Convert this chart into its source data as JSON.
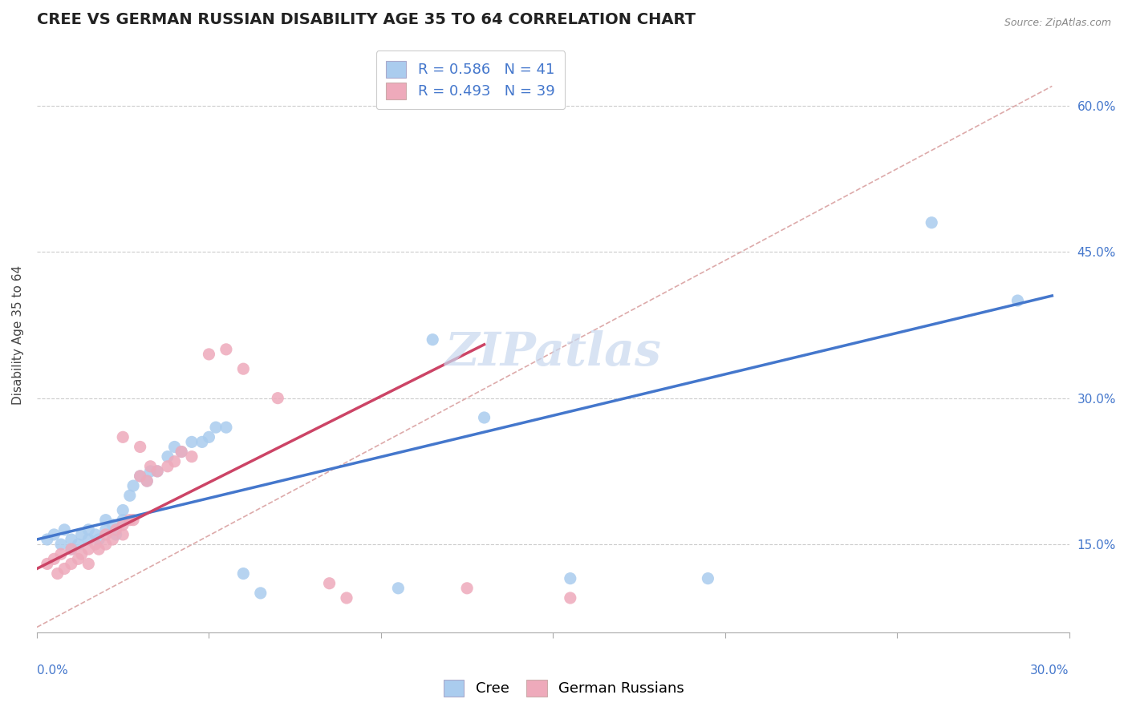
{
  "title": "CREE VS GERMAN RUSSIAN DISABILITY AGE 35 TO 64 CORRELATION CHART",
  "source": "Source: ZipAtlas.com",
  "ylabel": "Disability Age 35 to 64",
  "ylabel_ticks": [
    "15.0%",
    "30.0%",
    "45.0%",
    "60.0%"
  ],
  "ylabel_tick_vals": [
    0.15,
    0.3,
    0.45,
    0.6
  ],
  "xlim": [
    0.0,
    0.3
  ],
  "ylim": [
    0.06,
    0.67
  ],
  "cree_R": "0.586",
  "cree_N": "41",
  "german_R": "0.493",
  "german_N": "39",
  "cree_color": "#aaccee",
  "german_color": "#eeaabb",
  "cree_line_color": "#4477cc",
  "german_line_color": "#cc4466",
  "diagonal_color": "#ddaaaa",
  "watermark_color": "#c8d8ee",
  "cree_scatter": [
    [
      0.003,
      0.155
    ],
    [
      0.005,
      0.16
    ],
    [
      0.007,
      0.15
    ],
    [
      0.008,
      0.165
    ],
    [
      0.01,
      0.145
    ],
    [
      0.01,
      0.155
    ],
    [
      0.012,
      0.15
    ],
    [
      0.013,
      0.16
    ],
    [
      0.015,
      0.155
    ],
    [
      0.015,
      0.165
    ],
    [
      0.017,
      0.16
    ],
    [
      0.018,
      0.155
    ],
    [
      0.02,
      0.165
    ],
    [
      0.02,
      0.175
    ],
    [
      0.022,
      0.17
    ],
    [
      0.023,
      0.16
    ],
    [
      0.025,
      0.175
    ],
    [
      0.025,
      0.185
    ],
    [
      0.027,
      0.2
    ],
    [
      0.028,
      0.21
    ],
    [
      0.03,
      0.22
    ],
    [
      0.032,
      0.215
    ],
    [
      0.033,
      0.225
    ],
    [
      0.035,
      0.225
    ],
    [
      0.038,
      0.24
    ],
    [
      0.04,
      0.25
    ],
    [
      0.042,
      0.245
    ],
    [
      0.045,
      0.255
    ],
    [
      0.048,
      0.255
    ],
    [
      0.05,
      0.26
    ],
    [
      0.052,
      0.27
    ],
    [
      0.055,
      0.27
    ],
    [
      0.06,
      0.12
    ],
    [
      0.065,
      0.1
    ],
    [
      0.105,
      0.105
    ],
    [
      0.115,
      0.36
    ],
    [
      0.13,
      0.28
    ],
    [
      0.155,
      0.115
    ],
    [
      0.195,
      0.115
    ],
    [
      0.26,
      0.48
    ],
    [
      0.285,
      0.4
    ]
  ],
  "german_scatter": [
    [
      0.003,
      0.13
    ],
    [
      0.005,
      0.135
    ],
    [
      0.006,
      0.12
    ],
    [
      0.007,
      0.14
    ],
    [
      0.008,
      0.125
    ],
    [
      0.01,
      0.13
    ],
    [
      0.01,
      0.145
    ],
    [
      0.012,
      0.135
    ],
    [
      0.013,
      0.14
    ],
    [
      0.015,
      0.145
    ],
    [
      0.015,
      0.13
    ],
    [
      0.017,
      0.15
    ],
    [
      0.018,
      0.145
    ],
    [
      0.02,
      0.15
    ],
    [
      0.02,
      0.16
    ],
    [
      0.022,
      0.155
    ],
    [
      0.023,
      0.165
    ],
    [
      0.025,
      0.17
    ],
    [
      0.025,
      0.16
    ],
    [
      0.027,
      0.175
    ],
    [
      0.028,
      0.175
    ],
    [
      0.03,
      0.22
    ],
    [
      0.032,
      0.215
    ],
    [
      0.033,
      0.23
    ],
    [
      0.035,
      0.225
    ],
    [
      0.038,
      0.23
    ],
    [
      0.04,
      0.235
    ],
    [
      0.042,
      0.245
    ],
    [
      0.045,
      0.24
    ],
    [
      0.05,
      0.345
    ],
    [
      0.055,
      0.35
    ],
    [
      0.06,
      0.33
    ],
    [
      0.07,
      0.3
    ],
    [
      0.025,
      0.26
    ],
    [
      0.03,
      0.25
    ],
    [
      0.085,
      0.11
    ],
    [
      0.09,
      0.095
    ],
    [
      0.125,
      0.105
    ],
    [
      0.155,
      0.095
    ]
  ],
  "title_fontsize": 14,
  "tick_fontsize": 11,
  "legend_fontsize": 13
}
